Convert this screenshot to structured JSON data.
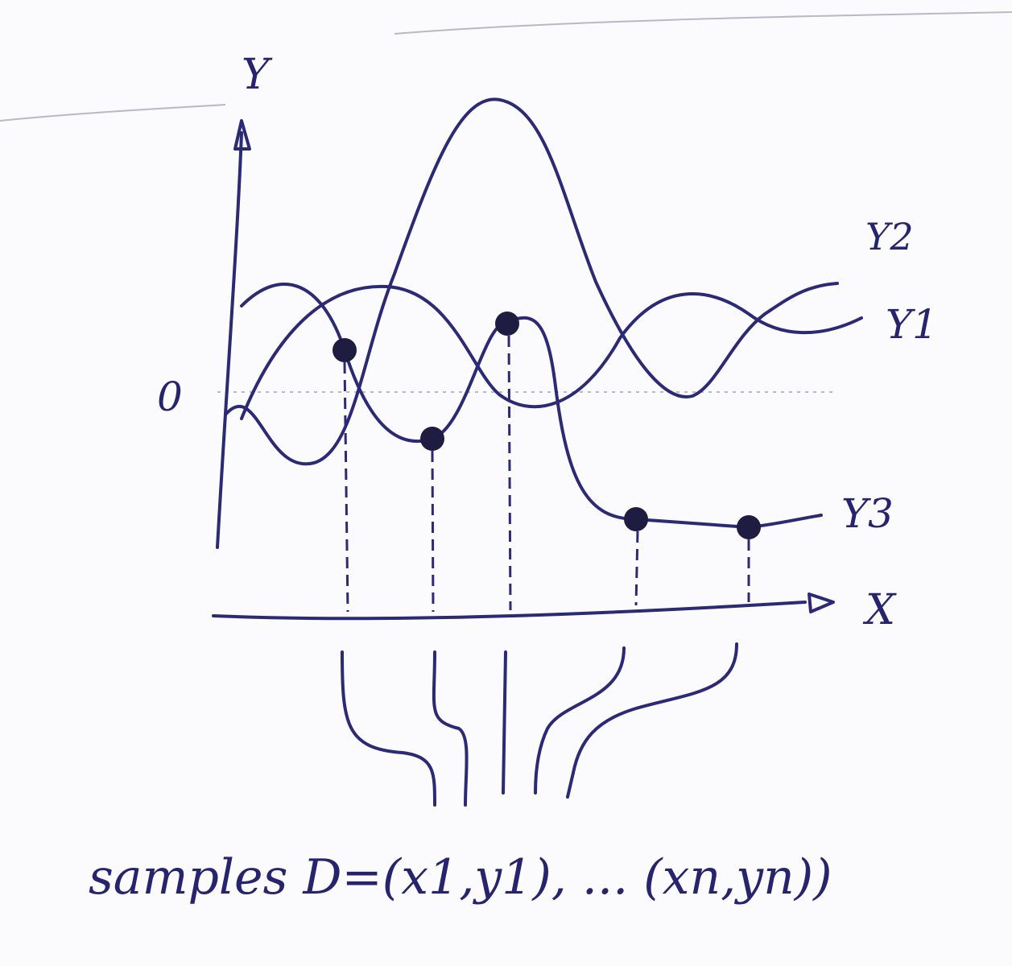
{
  "axes": {
    "y_label": "Y",
    "x_label": "X",
    "origin_label": "0"
  },
  "curves": [
    {
      "label": "Y2"
    },
    {
      "label": "Y1"
    },
    {
      "label": "Y3"
    }
  ],
  "caption": "samples D=(x1,y1), ... (xn,yn))"
}
